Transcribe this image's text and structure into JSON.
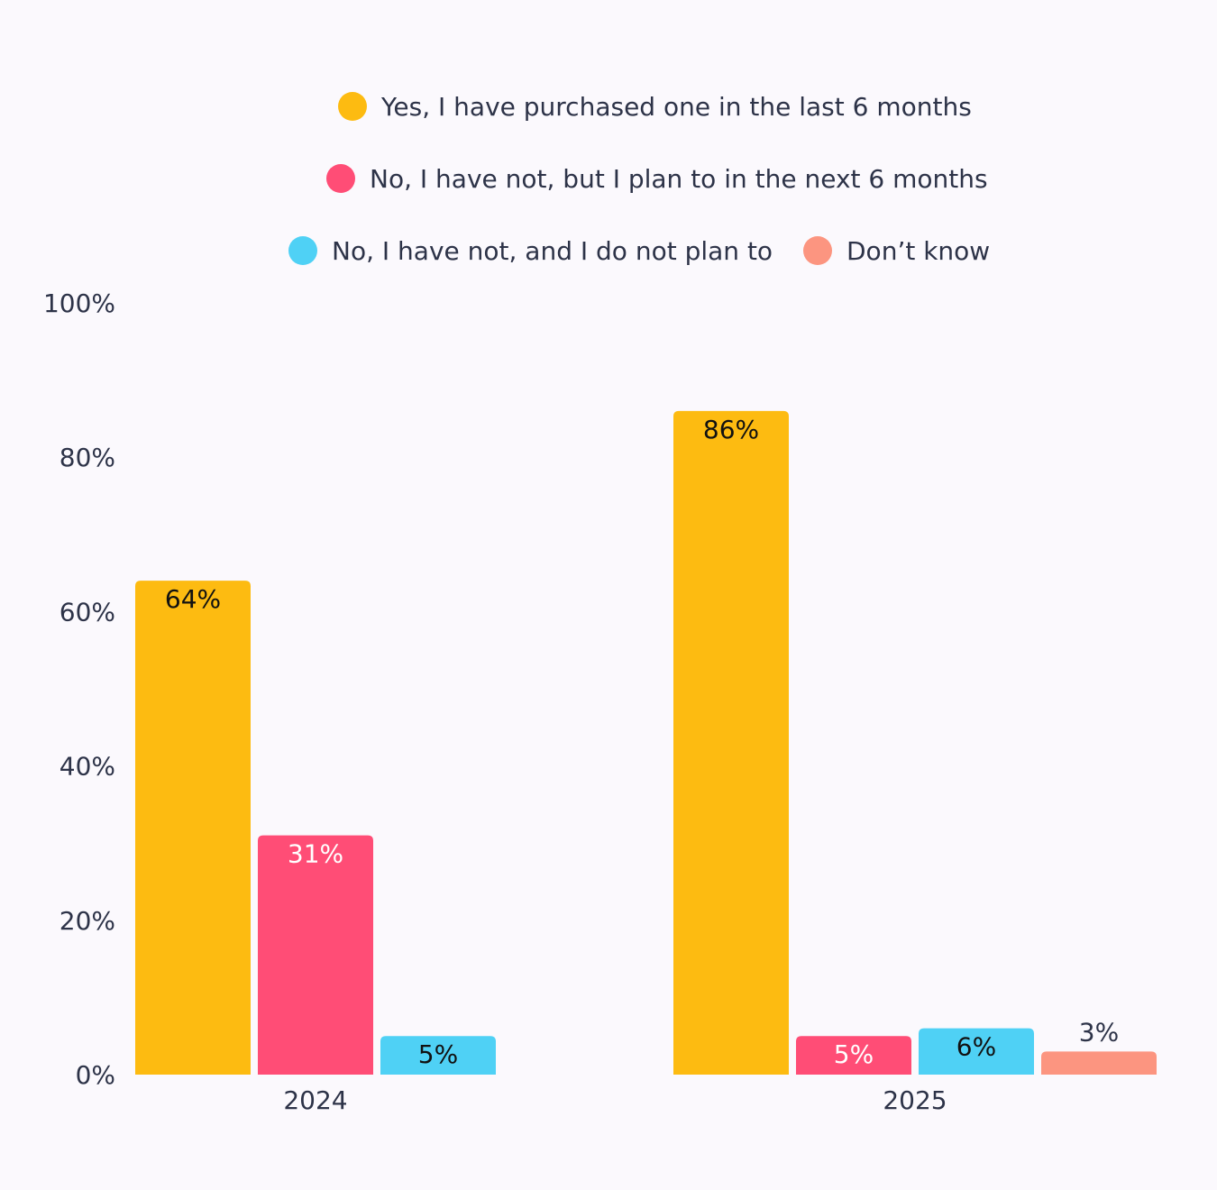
{
  "chart_data": {
    "type": "bar",
    "categories": [
      "2024",
      "2025"
    ],
    "ylim": [
      0,
      100
    ],
    "yticks": [
      "0%",
      "20%",
      "40%",
      "60%",
      "80%",
      "100%"
    ],
    "ytick_values": [
      0,
      20,
      40,
      60,
      80,
      100
    ],
    "legend_position": "top-center",
    "series": [
      {
        "name": "Yes, I have purchased one in the last 6 months",
        "color": "#fdbb11",
        "values": [
          64,
          86
        ],
        "labels": [
          "64%",
          "86%"
        ],
        "label_color": "#111111"
      },
      {
        "name": "No, I have not, but I plan to in the next 6 months",
        "color": "#ff4d76",
        "values": [
          31,
          5
        ],
        "labels": [
          "31%",
          "5%"
        ],
        "label_color": "#ffffff"
      },
      {
        "name": "No, I have not, and I do not plan to",
        "color": "#4fd1f5",
        "values": [
          5,
          6
        ],
        "labels": [
          "5%",
          "6%"
        ],
        "label_color": "#111111"
      },
      {
        "name": "Don’t know",
        "color": "#fc9580",
        "values": [
          null,
          3
        ],
        "labels": [
          null,
          "3%"
        ],
        "label_color": "#2d3348"
      }
    ]
  }
}
